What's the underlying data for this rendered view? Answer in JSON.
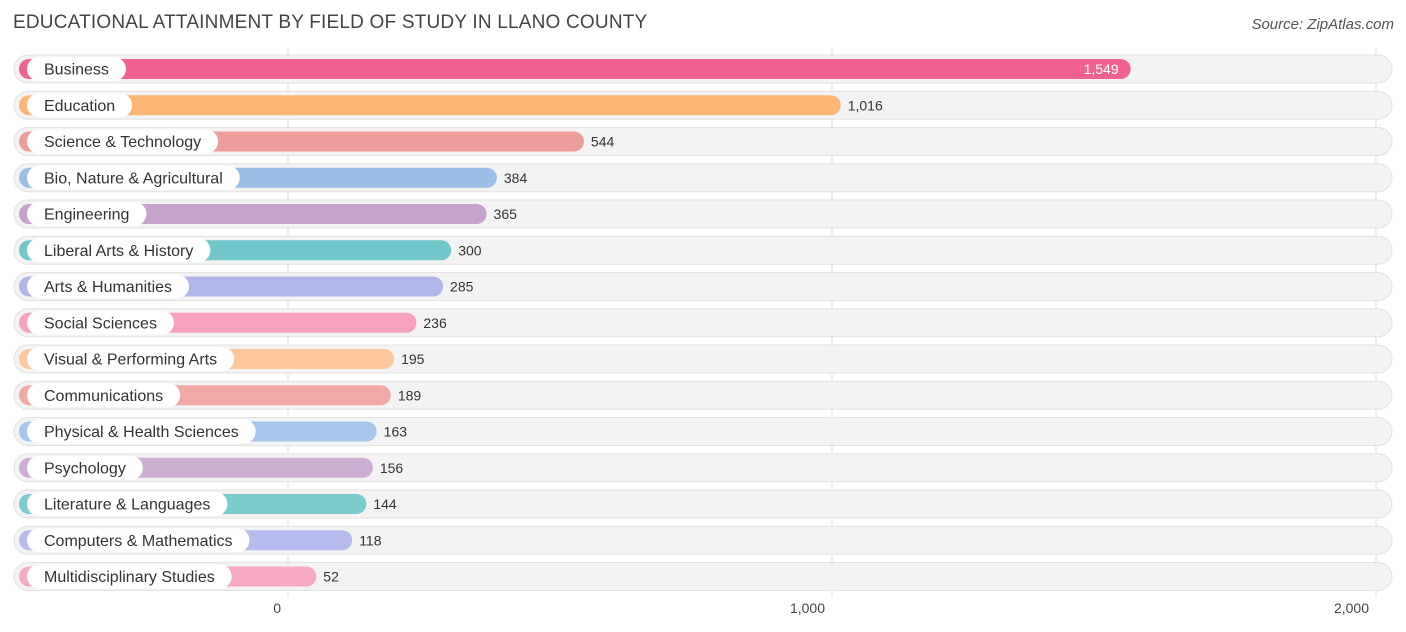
{
  "header": {
    "title": "EDUCATIONAL ATTAINMENT BY FIELD OF STUDY IN LLANO COUNTY",
    "source": "Source: ZipAtlas.com"
  },
  "chart_data": {
    "type": "bar",
    "orientation": "horizontal",
    "title": "EDUCATIONAL ATTAINMENT BY FIELD OF STUDY IN LLANO COUNTY",
    "xlabel": "",
    "ylabel": "",
    "xlim": [
      0,
      2000
    ],
    "ticks": [
      {
        "value": 0,
        "label": "0"
      },
      {
        "value": 1000,
        "label": "1,000"
      },
      {
        "value": 2000,
        "label": "2,000"
      }
    ],
    "grid": true,
    "bars": [
      {
        "category": "Business",
        "value": 1549,
        "label": "1,549",
        "color": "#f06292"
      },
      {
        "category": "Education",
        "value": 1016,
        "label": "1,016",
        "color": "#fdb574"
      },
      {
        "category": "Science & Technology",
        "value": 544,
        "label": "544",
        "color": "#ee9e9a"
      },
      {
        "category": "Bio, Nature & Agricultural",
        "value": 384,
        "label": "384",
        "color": "#9bbfe8"
      },
      {
        "category": "Engineering",
        "value": 365,
        "label": "365",
        "color": "#c5a3cc"
      },
      {
        "category": "Liberal Arts & History",
        "value": 300,
        "label": "300",
        "color": "#72c7ca"
      },
      {
        "category": "Arts & Humanities",
        "value": 285,
        "label": "285",
        "color": "#b0b5ea"
      },
      {
        "category": "Social Sciences",
        "value": 236,
        "label": "236",
        "color": "#f7a1bd"
      },
      {
        "category": "Visual & Performing Arts",
        "value": 195,
        "label": "195",
        "color": "#fdc99c"
      },
      {
        "category": "Communications",
        "value": 189,
        "label": "189",
        "color": "#f1a9a5"
      },
      {
        "category": "Physical & Health Sciences",
        "value": 163,
        "label": "163",
        "color": "#a6c6ec"
      },
      {
        "category": "Psychology",
        "value": 156,
        "label": "156",
        "color": "#cbaed2"
      },
      {
        "category": "Literature & Languages",
        "value": 144,
        "label": "144",
        "color": "#7ccbcd"
      },
      {
        "category": "Computers & Mathematics",
        "value": 118,
        "label": "118",
        "color": "#b6baec"
      },
      {
        "category": "Multidisciplinary Studies",
        "value": 52,
        "label": "52",
        "color": "#f8a9c3"
      }
    ]
  }
}
